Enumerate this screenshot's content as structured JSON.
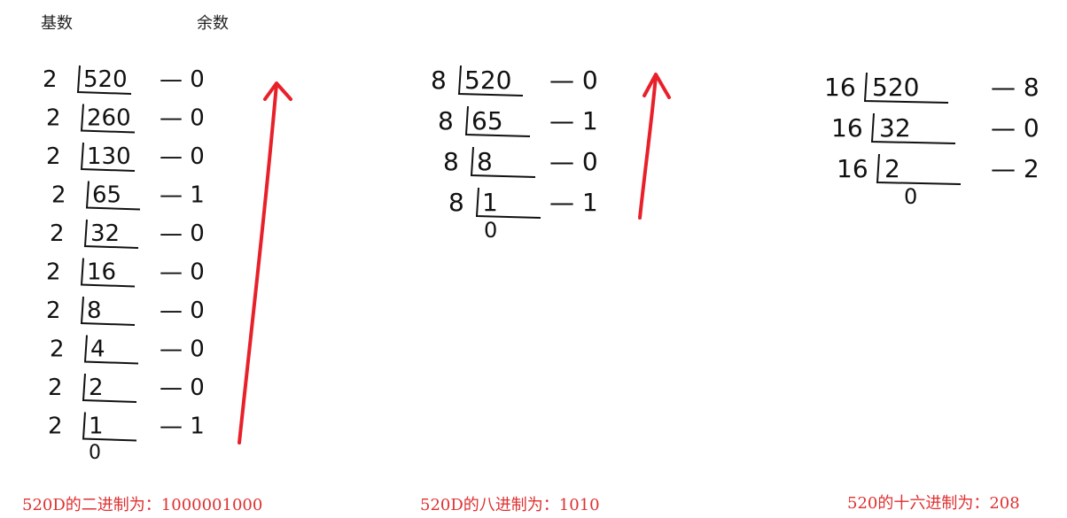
{
  "headers": {
    "base": "基数",
    "remainder": "余数"
  },
  "binary": {
    "rows": [
      {
        "base": "2",
        "value": "520",
        "remainder": "0"
      },
      {
        "base": "2",
        "value": "260",
        "remainder": "0"
      },
      {
        "base": "2",
        "value": "130",
        "remainder": "0"
      },
      {
        "base": "2",
        "value": "65",
        "remainder": "1"
      },
      {
        "base": "2",
        "value": "32",
        "remainder": "0"
      },
      {
        "base": "2",
        "value": "16",
        "remainder": "0"
      },
      {
        "base": "2",
        "value": "8",
        "remainder": "0"
      },
      {
        "base": "2",
        "value": "4",
        "remainder": "0"
      },
      {
        "base": "2",
        "value": "2",
        "remainder": "0"
      },
      {
        "base": "2",
        "value": "1",
        "remainder": "1"
      }
    ],
    "final": "0",
    "caption": "520D的二进制为：1000001000"
  },
  "octal": {
    "rows": [
      {
        "base": "8",
        "value": "520",
        "remainder": "0"
      },
      {
        "base": "8",
        "value": "65",
        "remainder": "1"
      },
      {
        "base": "8",
        "value": "8",
        "remainder": "0"
      },
      {
        "base": "8",
        "value": "1",
        "remainder": "1"
      }
    ],
    "final": "0",
    "caption": "520D的八进制为：1010"
  },
  "hex": {
    "rows": [
      {
        "base": "16",
        "value": "520",
        "remainder": "8"
      },
      {
        "base": "16",
        "value": "32",
        "remainder": "0"
      },
      {
        "base": "16",
        "value": "2",
        "remainder": "2"
      }
    ],
    "final": "0",
    "caption": "520的十六进制为：208"
  },
  "colors": {
    "arrow": "#e8202a",
    "caption": "#e03030",
    "ink": "#111111"
  }
}
